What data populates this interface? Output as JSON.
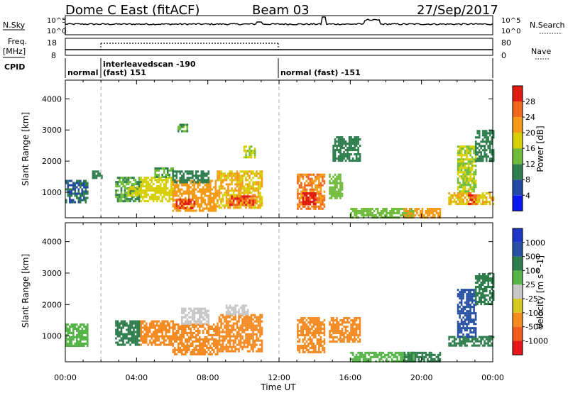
{
  "header": {
    "station": "Dome C East (fitACF)",
    "beam": "Beam 03",
    "date": "27/Sep/2017"
  },
  "noise_panel": {
    "left_label": "N.Sky",
    "right_label": "N.Search",
    "tick_top": "10^5",
    "tick_bottom": "10^0",
    "right_tick_top": "10^5",
    "right_tick_bottom": "10^0"
  },
  "freq_panel": {
    "left_label_1": "Freq.",
    "left_label_2": "[MHz]",
    "left_tick_top": "18",
    "left_tick_bottom": "8",
    "right_label": "Nave",
    "right_tick_top": "80",
    "right_tick_bottom": "0"
  },
  "cpid_panel": {
    "label": "CPID",
    "segments": [
      {
        "text_1": "normal",
        "text_2": "",
        "start_hour": 0
      },
      {
        "text_1": "interleavedscan -190",
        "text_2": "(fast) 151",
        "start_hour": 2
      },
      {
        "text_1": "normal (fast) -151",
        "text_2": "",
        "start_hour": 12
      }
    ]
  },
  "colors": {
    "power_scale": [
      "#0b18f0",
      "#234aa6",
      "#2f7e4e",
      "#6fbb3a",
      "#d6d000",
      "#f39a17",
      "#f1681b",
      "#e11a12"
    ],
    "velocity_scale": [
      "#e8151a",
      "#f15c1e",
      "#f48a22",
      "#d5c820",
      "#c7c7c7",
      "#55b548",
      "#2e7d4d",
      "#2750a3",
      "#1e36c8"
    ]
  },
  "chart_data": [
    {
      "type": "heatmap",
      "title": "",
      "xlabel": "Time UT",
      "ylabel": "Slant Range [km]",
      "colorbar_label": "Power [dB]",
      "x_ticks": [
        "00:00",
        "04:00",
        "08:00",
        "12:00",
        "16:00",
        "20:00",
        "00:00"
      ],
      "y_ticks": [
        1000,
        2000,
        3000,
        4000
      ],
      "xlim": [
        0,
        24
      ],
      "ylim": [
        180,
        4600
      ],
      "colorbar_ticks": [
        "4",
        "8",
        "12",
        "16",
        "20",
        "24",
        "28"
      ],
      "colorbar_range": [
        0,
        32
      ],
      "regions": [
        {
          "x": [
            0.0,
            1.2
          ],
          "y": [
            700,
            1400
          ],
          "value": 8
        },
        {
          "x": [
            1.5,
            2.0
          ],
          "y": [
            1450,
            1700
          ],
          "value": 10
        },
        {
          "x": [
            2.8,
            4.2
          ],
          "y": [
            700,
            1500
          ],
          "value": 12
        },
        {
          "x": [
            3.5,
            4.2
          ],
          "y": [
            900,
            1200
          ],
          "value": 18
        },
        {
          "x": [
            4.2,
            6.0
          ],
          "y": [
            700,
            1500
          ],
          "value": 18
        },
        {
          "x": [
            5.0,
            6.0
          ],
          "y": [
            1500,
            1800
          ],
          "value": 12
        },
        {
          "x": [
            6.0,
            8.5
          ],
          "y": [
            400,
            1400
          ],
          "value": 22
        },
        {
          "x": [
            6.2,
            7.2
          ],
          "y": [
            500,
            800
          ],
          "value": 28
        },
        {
          "x": [
            6.0,
            8.0
          ],
          "y": [
            1300,
            1700
          ],
          "value": 10
        },
        {
          "x": [
            8.5,
            11.0
          ],
          "y": [
            500,
            1700
          ],
          "value": 20
        },
        {
          "x": [
            9.2,
            10.6
          ],
          "y": [
            600,
            900
          ],
          "value": 28
        },
        {
          "x": [
            6.3,
            6.8
          ],
          "y": [
            2950,
            3200
          ],
          "value": 12
        },
        {
          "x": [
            10.0,
            10.6
          ],
          "y": [
            2100,
            2500
          ],
          "value": 16
        },
        {
          "x": [
            13.0,
            14.5
          ],
          "y": [
            500,
            1600
          ],
          "value": 24
        },
        {
          "x": [
            13.3,
            14.0
          ],
          "y": [
            600,
            1000
          ],
          "value": 30
        },
        {
          "x": [
            14.8,
            15.5
          ],
          "y": [
            800,
            1600
          ],
          "value": 14
        },
        {
          "x": [
            15.0,
            16.5
          ],
          "y": [
            2000,
            2800
          ],
          "value": 10
        },
        {
          "x": [
            16.0,
            19.5
          ],
          "y": [
            200,
            500
          ],
          "value": 14
        },
        {
          "x": [
            19.0,
            21.0
          ],
          "y": [
            200,
            500
          ],
          "value": 22
        },
        {
          "x": [
            21.5,
            24.0
          ],
          "y": [
            600,
            1000
          ],
          "value": 20
        },
        {
          "x": [
            22.0,
            23.0
          ],
          "y": [
            1000,
            2500
          ],
          "value": 16
        },
        {
          "x": [
            22.6,
            23.0
          ],
          "y": [
            600,
            1000
          ],
          "value": 28
        },
        {
          "x": [
            23.0,
            24.0
          ],
          "y": [
            2000,
            3000
          ],
          "value": 10
        }
      ]
    },
    {
      "type": "heatmap",
      "title": "",
      "xlabel": "Time UT",
      "ylabel": "Slant Range [km]",
      "colorbar_label": "Velocity [m s^-1]",
      "x_ticks": [
        "00:00",
        "04:00",
        "08:00",
        "12:00",
        "16:00",
        "20:00",
        "00:00"
      ],
      "y_ticks": [
        1000,
        2000,
        3000,
        4000
      ],
      "xlim": [
        0,
        24
      ],
      "ylim": [
        180,
        4600
      ],
      "colorbar_ticks": [
        "-1000",
        "-500",
        "-100",
        "-25",
        "25",
        "100",
        "500",
        "1000"
      ],
      "colorbar_range": [
        -1200,
        1200
      ],
      "regions": [
        {
          "x": [
            0.0,
            1.2
          ],
          "y": [
            700,
            1400
          ],
          "value": 60
        },
        {
          "x": [
            2.8,
            4.2
          ],
          "y": [
            700,
            1500
          ],
          "value": 200
        },
        {
          "x": [
            4.2,
            6.0
          ],
          "y": [
            700,
            1500
          ],
          "value": -300
        },
        {
          "x": [
            6.0,
            8.5
          ],
          "y": [
            400,
            1400
          ],
          "value": -300
        },
        {
          "x": [
            6.5,
            8.0
          ],
          "y": [
            1400,
            1900
          ],
          "value": 0
        },
        {
          "x": [
            8.5,
            11.0
          ],
          "y": [
            500,
            1700
          ],
          "value": -300
        },
        {
          "x": [
            9.0,
            10.2
          ],
          "y": [
            1700,
            2000
          ],
          "value": 0
        },
        {
          "x": [
            13.0,
            14.5
          ],
          "y": [
            500,
            1600
          ],
          "value": -300
        },
        {
          "x": [
            14.8,
            16.5
          ],
          "y": [
            800,
            1600
          ],
          "value": -120
        },
        {
          "x": [
            16.0,
            19.5
          ],
          "y": [
            200,
            500
          ],
          "value": 60
        },
        {
          "x": [
            19.0,
            21.0
          ],
          "y": [
            200,
            500
          ],
          "value": 200
        },
        {
          "x": [
            21.5,
            24.0
          ],
          "y": [
            700,
            1000
          ],
          "value": 200
        },
        {
          "x": [
            22.0,
            23.0
          ],
          "y": [
            1000,
            2500
          ],
          "value": 600
        },
        {
          "x": [
            23.0,
            24.0
          ],
          "y": [
            2000,
            3000
          ],
          "value": 200
        }
      ]
    }
  ]
}
